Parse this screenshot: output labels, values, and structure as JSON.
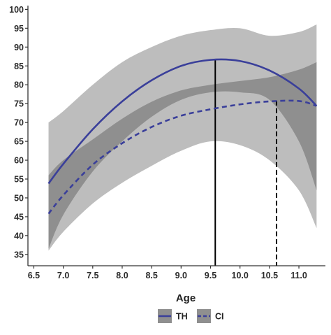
{
  "chart_data": {
    "type": "line",
    "title": "",
    "xlabel": "Age",
    "ylabel": "",
    "xlim": [
      6.4,
      11.45
    ],
    "ylim": [
      32,
      101
    ],
    "x_ticks": [
      6.5,
      7.0,
      7.5,
      8.0,
      8.5,
      9.0,
      9.5,
      10.0,
      10.5,
      11.0
    ],
    "x_tick_labels": [
      "6.5",
      "7.0",
      "7.5",
      "8.0",
      "8.5",
      "9.0",
      "9.5",
      "10.0",
      "10.5",
      "11.0"
    ],
    "y_ticks": [
      35,
      40,
      45,
      50,
      55,
      60,
      65,
      70,
      75,
      80,
      85,
      90,
      95,
      100
    ],
    "y_tick_labels": [
      "35",
      "40",
      "45",
      "50",
      "55",
      "60",
      "65",
      "70",
      "75",
      "80",
      "85",
      "90",
      "95",
      "100"
    ],
    "grid": false,
    "legend_position": "bottom",
    "series": [
      {
        "name": "TH",
        "line_style": "solid",
        "color": "#3a3f9a",
        "x": [
          6.75,
          7.0,
          7.5,
          8.0,
          8.5,
          9.0,
          9.5,
          10.0,
          10.5,
          11.0,
          11.3
        ],
        "y": [
          53.8,
          59.0,
          68.2,
          75.6,
          81.2,
          85.0,
          86.6,
          86.3,
          83.8,
          79.0,
          74.4
        ],
        "ci_lower": [
          36.5,
          45.5,
          57.0,
          65.0,
          71.5,
          76.0,
          78.0,
          78.0,
          76.0,
          65.0,
          52.0
        ],
        "ci_upper": [
          70.0,
          73.0,
          80.0,
          86.0,
          90.0,
          93.0,
          94.5,
          95.0,
          93.0,
          94.0,
          96.0
        ]
      },
      {
        "name": "CI",
        "line_style": "dashed",
        "color": "#3a3f9a",
        "x": [
          6.75,
          7.0,
          7.5,
          8.0,
          8.5,
          9.0,
          9.5,
          10.0,
          10.5,
          11.0,
          11.3
        ],
        "y": [
          45.8,
          50.7,
          58.8,
          64.5,
          68.8,
          71.8,
          73.5,
          74.8,
          75.6,
          75.7,
          74.4
        ],
        "ci_lower": [
          36.0,
          41.0,
          48.5,
          54.0,
          58.5,
          62.5,
          65.0,
          64.0,
          60.0,
          52.0,
          42.0
        ],
        "ci_upper": [
          56.0,
          60.0,
          65.5,
          71.0,
          75.5,
          78.5,
          80.0,
          81.0,
          82.0,
          84.0,
          86.0
        ]
      }
    ],
    "reference_lines": [
      {
        "series": "TH",
        "x": 9.58,
        "y": 86.7,
        "style": "solid"
      },
      {
        "series": "CI",
        "x": 10.62,
        "y": 75.8,
        "style": "dashed"
      }
    ],
    "colors": {
      "line": "#3a3f9a",
      "ci_band": "#bdbdbd",
      "ci_overlap": "#8f8f8f",
      "reference_line": "#000000",
      "axis": "#333333"
    }
  }
}
